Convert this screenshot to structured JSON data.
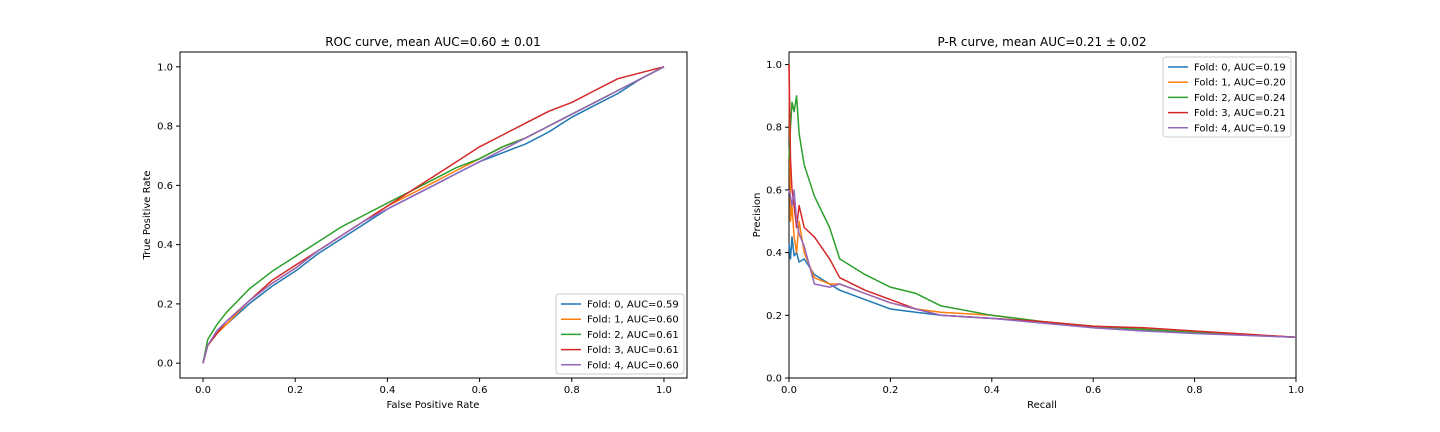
{
  "chart_data": [
    {
      "type": "line",
      "title": "ROC curve, mean AUC=0.60 ± 0.01",
      "xlabel": "False Positive Rate",
      "ylabel": "True Positive Rate",
      "xlim": [
        -0.05,
        1.05
      ],
      "ylim": [
        -0.05,
        1.05
      ],
      "xticks": [
        "0.0",
        "0.2",
        "0.4",
        "0.6",
        "0.8",
        "1.0"
      ],
      "yticks": [
        "0.0",
        "0.2",
        "0.4",
        "0.6",
        "0.8",
        "1.0"
      ],
      "legend_position": "lower-right",
      "grid": false,
      "series": [
        {
          "name": "Fold: 0, AUC=0.59",
          "color": "#1f77b4",
          "x": [
            0,
            0.01,
            0.03,
            0.05,
            0.1,
            0.15,
            0.2,
            0.25,
            0.3,
            0.35,
            0.4,
            0.45,
            0.5,
            0.55,
            0.6,
            0.65,
            0.7,
            0.75,
            0.8,
            0.85,
            0.9,
            0.95,
            1.0
          ],
          "y": [
            0,
            0.06,
            0.1,
            0.13,
            0.2,
            0.26,
            0.31,
            0.37,
            0.42,
            0.47,
            0.52,
            0.56,
            0.6,
            0.64,
            0.68,
            0.71,
            0.74,
            0.78,
            0.83,
            0.87,
            0.91,
            0.96,
            1.0
          ]
        },
        {
          "name": "Fold: 1, AUC=0.60",
          "color": "#ff7f0e",
          "x": [
            0,
            0.01,
            0.03,
            0.05,
            0.1,
            0.15,
            0.2,
            0.25,
            0.3,
            0.35,
            0.4,
            0.45,
            0.5,
            0.55,
            0.6,
            0.65,
            0.7,
            0.75,
            0.8,
            0.85,
            0.9,
            0.95,
            1.0
          ],
          "y": [
            0,
            0.06,
            0.1,
            0.13,
            0.21,
            0.27,
            0.32,
            0.38,
            0.43,
            0.48,
            0.53,
            0.57,
            0.61,
            0.65,
            0.69,
            0.73,
            0.76,
            0.8,
            0.84,
            0.88,
            0.92,
            0.96,
            1.0
          ]
        },
        {
          "name": "Fold: 2, AUC=0.61",
          "color": "#2ca02c",
          "x": [
            0,
            0.01,
            0.03,
            0.05,
            0.1,
            0.15,
            0.2,
            0.25,
            0.3,
            0.35,
            0.4,
            0.45,
            0.5,
            0.55,
            0.6,
            0.65,
            0.7,
            0.75,
            0.8,
            0.85,
            0.9,
            0.95,
            1.0
          ],
          "y": [
            0,
            0.08,
            0.13,
            0.17,
            0.25,
            0.31,
            0.36,
            0.41,
            0.46,
            0.5,
            0.54,
            0.58,
            0.62,
            0.66,
            0.69,
            0.73,
            0.76,
            0.8,
            0.84,
            0.88,
            0.92,
            0.96,
            1.0
          ]
        },
        {
          "name": "Fold: 3, AUC=0.61",
          "color": "#d62728",
          "x": [
            0,
            0.01,
            0.03,
            0.05,
            0.1,
            0.15,
            0.2,
            0.25,
            0.3,
            0.35,
            0.4,
            0.45,
            0.5,
            0.55,
            0.6,
            0.65,
            0.7,
            0.75,
            0.8,
            0.85,
            0.9,
            0.95,
            1.0
          ],
          "y": [
            0,
            0.06,
            0.1,
            0.14,
            0.21,
            0.28,
            0.33,
            0.38,
            0.43,
            0.48,
            0.53,
            0.58,
            0.63,
            0.68,
            0.73,
            0.77,
            0.81,
            0.85,
            0.88,
            0.92,
            0.96,
            0.98,
            1.0
          ]
        },
        {
          "name": "Fold: 4, AUC=0.60",
          "color": "#9467bd",
          "x": [
            0,
            0.01,
            0.03,
            0.05,
            0.1,
            0.15,
            0.2,
            0.25,
            0.3,
            0.35,
            0.4,
            0.45,
            0.5,
            0.55,
            0.6,
            0.65,
            0.7,
            0.75,
            0.8,
            0.85,
            0.9,
            0.95,
            1.0
          ],
          "y": [
            0,
            0.06,
            0.11,
            0.14,
            0.21,
            0.27,
            0.32,
            0.38,
            0.43,
            0.48,
            0.52,
            0.56,
            0.6,
            0.64,
            0.68,
            0.72,
            0.76,
            0.8,
            0.84,
            0.88,
            0.92,
            0.96,
            1.0
          ]
        }
      ]
    },
    {
      "type": "line",
      "title": "P-R curve, mean AUC=0.21 ± 0.02",
      "xlabel": "Recall",
      "ylabel": "Precision",
      "xlim": [
        0,
        1
      ],
      "ylim": [
        0,
        1.04
      ],
      "xticks": [
        "0.0",
        "0.2",
        "0.4",
        "0.6",
        "0.8",
        "1.0"
      ],
      "yticks": [
        "0.0",
        "0.2",
        "0.4",
        "0.6",
        "0.8",
        "1.0"
      ],
      "legend_position": "upper-right",
      "grid": false,
      "series": [
        {
          "name": "Fold: 0, AUC=0.19",
          "color": "#1f77b4",
          "x": [
            0.0,
            0.003,
            0.006,
            0.01,
            0.015,
            0.02,
            0.03,
            0.05,
            0.08,
            0.1,
            0.15,
            0.2,
            0.25,
            0.3,
            0.4,
            0.5,
            0.6,
            0.7,
            0.8,
            0.9,
            1.0
          ],
          "y": [
            0.43,
            0.38,
            0.45,
            0.39,
            0.4,
            0.37,
            0.38,
            0.33,
            0.3,
            0.28,
            0.25,
            0.22,
            0.21,
            0.2,
            0.19,
            0.18,
            0.16,
            0.15,
            0.145,
            0.138,
            0.13
          ]
        },
        {
          "name": "Fold: 1, AUC=0.20",
          "color": "#ff7f0e",
          "x": [
            0.0,
            0.003,
            0.006,
            0.01,
            0.015,
            0.02,
            0.03,
            0.05,
            0.08,
            0.1,
            0.15,
            0.2,
            0.25,
            0.3,
            0.4,
            0.5,
            0.6,
            0.7,
            0.8,
            0.9,
            1.0
          ],
          "y": [
            1.0,
            0.5,
            0.55,
            0.45,
            0.4,
            0.5,
            0.4,
            0.32,
            0.3,
            0.3,
            0.27,
            0.24,
            0.22,
            0.21,
            0.2,
            0.18,
            0.165,
            0.155,
            0.145,
            0.137,
            0.13
          ]
        },
        {
          "name": "Fold: 2, AUC=0.24",
          "color": "#2ca02c",
          "x": [
            0.0,
            0.003,
            0.006,
            0.01,
            0.015,
            0.02,
            0.03,
            0.05,
            0.08,
            0.1,
            0.15,
            0.2,
            0.25,
            0.3,
            0.4,
            0.5,
            0.6,
            0.7,
            0.8,
            0.9,
            1.0
          ],
          "y": [
            0.7,
            0.8,
            0.88,
            0.85,
            0.9,
            0.78,
            0.68,
            0.58,
            0.48,
            0.38,
            0.33,
            0.29,
            0.27,
            0.23,
            0.2,
            0.18,
            0.165,
            0.155,
            0.145,
            0.138,
            0.13
          ]
        },
        {
          "name": "Fold: 3, AUC=0.21",
          "color": "#d62728",
          "x": [
            0.0,
            0.003,
            0.006,
            0.01,
            0.015,
            0.02,
            0.03,
            0.05,
            0.08,
            0.1,
            0.15,
            0.2,
            0.25,
            0.3,
            0.4,
            0.5,
            0.6,
            0.7,
            0.8,
            0.9,
            1.0
          ],
          "y": [
            1.0,
            0.7,
            0.6,
            0.55,
            0.48,
            0.55,
            0.48,
            0.45,
            0.38,
            0.32,
            0.28,
            0.25,
            0.22,
            0.2,
            0.19,
            0.18,
            0.165,
            0.16,
            0.15,
            0.14,
            0.13
          ]
        },
        {
          "name": "Fold: 4, AUC=0.19",
          "color": "#9467bd",
          "x": [
            0.0,
            0.003,
            0.006,
            0.01,
            0.015,
            0.02,
            0.03,
            0.05,
            0.08,
            0.1,
            0.15,
            0.2,
            0.25,
            0.3,
            0.4,
            0.5,
            0.6,
            0.7,
            0.8,
            0.9,
            1.0
          ],
          "y": [
            0.6,
            0.58,
            0.55,
            0.6,
            0.5,
            0.46,
            0.42,
            0.3,
            0.29,
            0.3,
            0.27,
            0.24,
            0.22,
            0.2,
            0.19,
            0.175,
            0.16,
            0.15,
            0.142,
            0.136,
            0.13
          ]
        }
      ]
    }
  ]
}
